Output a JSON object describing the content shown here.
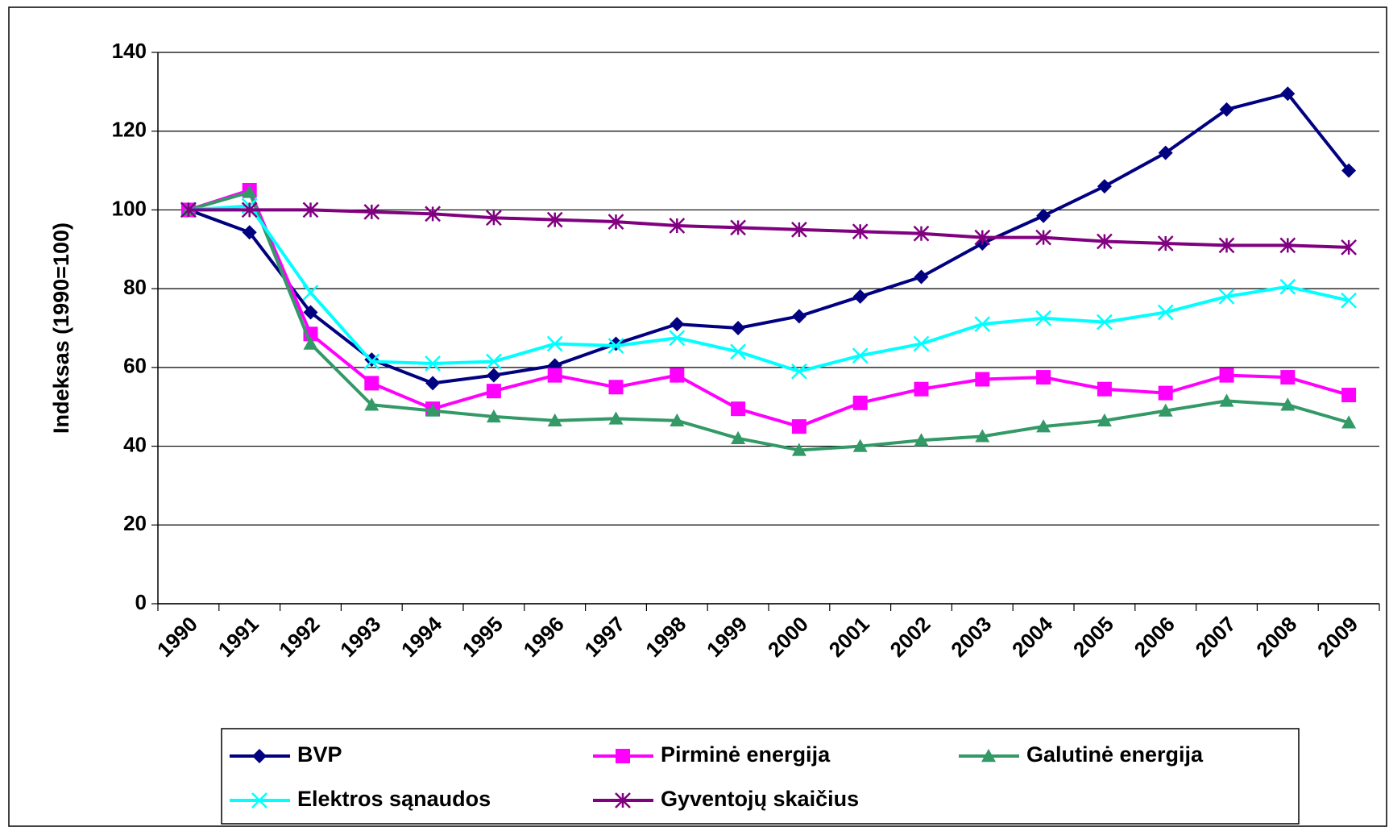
{
  "chart_data": {
    "type": "line",
    "y_label": "Indeksas (1990=100)",
    "categories": [
      "1990",
      "1991",
      "1992",
      "1993",
      "1994",
      "1995",
      "1996",
      "1997",
      "1998",
      "1999",
      "2000",
      "2001",
      "2002",
      "2003",
      "2004",
      "2005",
      "2006",
      "2007",
      "2008",
      "2009"
    ],
    "ylim": [
      0,
      140
    ],
    "yticks": [
      0,
      20,
      40,
      60,
      80,
      100,
      120,
      140
    ],
    "grid": true,
    "legend": "bottom",
    "series": [
      {
        "name": "BVP",
        "color": "#000080",
        "marker": "diamond",
        "values": [
          100,
          94.3,
          74,
          62,
          56,
          58,
          60.5,
          66,
          71,
          70,
          73,
          78,
          83,
          91.5,
          98.5,
          106,
          114.5,
          125.5,
          129.5,
          110
        ]
      },
      {
        "name": "Pirminė energija",
        "color": "#ff00ff",
        "marker": "square",
        "values": [
          100,
          105,
          68.5,
          56,
          49.5,
          54,
          58,
          55,
          58,
          49.5,
          45,
          51,
          54.5,
          57,
          57.5,
          54.5,
          53.5,
          58,
          57.5,
          53
        ]
      },
      {
        "name": "Galutinė energija",
        "color": "#339966",
        "marker": "triangle",
        "values": [
          100,
          104.5,
          66,
          50.5,
          49,
          47.5,
          46.5,
          47,
          46.5,
          42,
          39,
          40,
          41.5,
          42.5,
          45,
          46.5,
          49,
          51.5,
          50.5,
          46
        ]
      },
      {
        "name": "Elektros sąnaudos",
        "color": "#00ffff",
        "marker": "x",
        "values": [
          100,
          101,
          79,
          61.5,
          61,
          61.5,
          66,
          65.5,
          67.5,
          64,
          59,
          63,
          66,
          71,
          72.5,
          71.5,
          74,
          78,
          80.5,
          77
        ]
      },
      {
        "name": "Gyventojų skaičius",
        "color": "#800080",
        "marker": "star",
        "values": [
          100,
          100,
          100,
          99.5,
          99,
          98,
          97.5,
          97,
          96,
          95.5,
          95,
          94.5,
          94,
          93,
          93,
          92,
          91.5,
          91,
          91,
          90.5
        ]
      }
    ]
  }
}
